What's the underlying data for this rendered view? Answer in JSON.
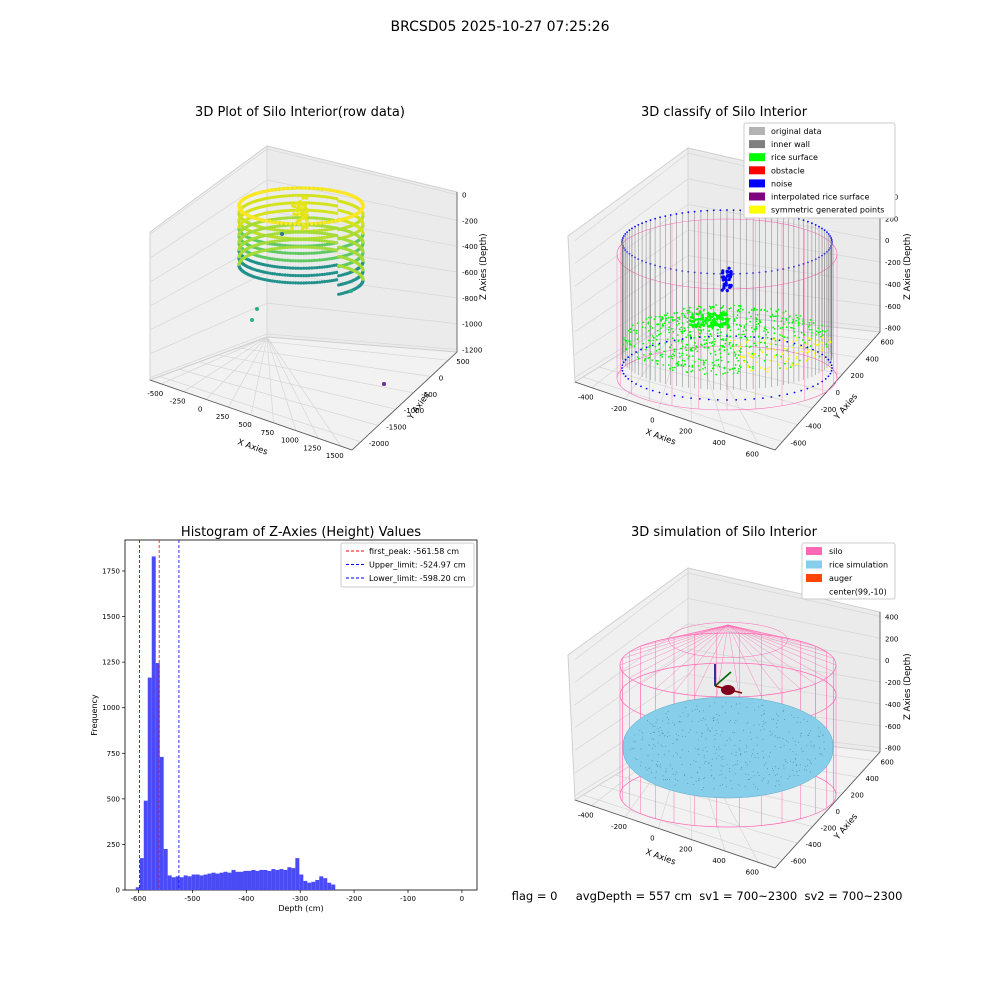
{
  "suptitle": "BRCSD05 2025-10-27 07:25:26",
  "colors": {
    "original": "#b3b3b3",
    "inner_wall": "#808080",
    "rice_surface": "#00ff00",
    "obstacle": "#ff0000",
    "noise": "#0000ff",
    "interpolated": "#800080",
    "symmetric": "#ffff00",
    "silo": "#ff69b4",
    "rice_sim": "#87ceeb",
    "auger": "#ff4500",
    "hist_bar": "#4b4bf5"
  },
  "chart_data": [
    {
      "type": "scatter",
      "title": "3D Plot of Silo Interior(row data)",
      "xlabel": "X Axies",
      "ylabel": "Y Axies",
      "zlabel": "Z Axies (Depth)",
      "x_ticks": [
        "-500",
        "-250",
        "0",
        "250",
        "500",
        "750",
        "1000",
        "1250",
        "1500"
      ],
      "y_ticks": [
        "500",
        "0",
        "-500",
        "-1000",
        "-1500",
        "-2000"
      ],
      "z_ticks": [
        "0",
        "-200",
        "-400",
        "-600",
        "-800",
        "-1000",
        "-1200"
      ],
      "grid": true
    },
    {
      "type": "scatter",
      "title": "3D classify of Silo Interior",
      "xlabel": "X Axies",
      "ylabel": "Y Axies",
      "zlabel": "Z Axies (Depth)",
      "x_ticks": [
        "-400",
        "-200",
        "0",
        "200",
        "400",
        "600"
      ],
      "y_ticks": [
        "600",
        "400",
        "200",
        "0",
        "-200",
        "-400",
        "-600"
      ],
      "z_ticks": [
        "400",
        "200",
        "0",
        "-200",
        "-400",
        "-600",
        "-800"
      ],
      "legend": [
        "original data",
        "inner wall",
        "rice surface",
        "obstacle",
        "noise",
        "interpolated rice surface",
        "symmetric generated points"
      ],
      "legend_position": "top-right",
      "grid": true
    },
    {
      "type": "bar",
      "title": "Histogram of Z-Axies (Height) Values",
      "xlabel": "Depth (cm)",
      "ylabel": "Frequency",
      "xlim": [
        -625,
        28
      ],
      "ylim": [
        0,
        1920
      ],
      "x_ticks": [
        -600,
        -500,
        -400,
        -300,
        -200,
        -100,
        0
      ],
      "y_ticks": [
        0,
        250,
        500,
        750,
        1000,
        1250,
        1500,
        1750
      ],
      "bin_width": 7.4,
      "bin_start": -605,
      "values": [
        15,
        175,
        490,
        1165,
        1830,
        1245,
        730,
        225,
        80,
        70,
        75,
        70,
        80,
        75,
        85,
        85,
        80,
        85,
        90,
        95,
        90,
        95,
        100,
        95,
        110,
        100,
        100,
        105,
        105,
        110,
        105,
        110,
        110,
        105,
        115,
        110,
        115,
        110,
        125,
        120,
        175,
        85,
        50,
        40,
        45,
        55,
        75,
        65,
        40,
        30
      ],
      "vlines": [
        {
          "label": "first_peak: -561.58 cm",
          "x": -561.58,
          "color": "#ff0000"
        },
        {
          "label": "Upper_limit: -524.97 cm",
          "x": -524.97,
          "color": "#0000ff"
        },
        {
          "label": "Lower_limit: -598.20 cm",
          "x": -598.2,
          "color": "#0000ff"
        }
      ],
      "legend_position": "top-right"
    },
    {
      "type": "scatter",
      "title": "3D simulation of Silo Interior",
      "xlabel": "X Axies",
      "ylabel": "Y Axies",
      "zlabel": "Z Axies (Depth)",
      "x_ticks": [
        "-400",
        "-200",
        "0",
        "200",
        "400",
        "600"
      ],
      "y_ticks": [
        "600",
        "400",
        "200",
        "0",
        "-200",
        "-400",
        "-600"
      ],
      "z_ticks": [
        "400",
        "200",
        "0",
        "-200",
        "-400",
        "-600",
        "-800"
      ],
      "legend": [
        "silo",
        "rice simulation",
        "auger",
        "center(99,-10)"
      ],
      "legend_position": "top-right",
      "grid": true
    }
  ],
  "status_line": "flag = 0     avgDepth = 557 cm  sv1 = 700~2300  sv2 = 700~2300"
}
